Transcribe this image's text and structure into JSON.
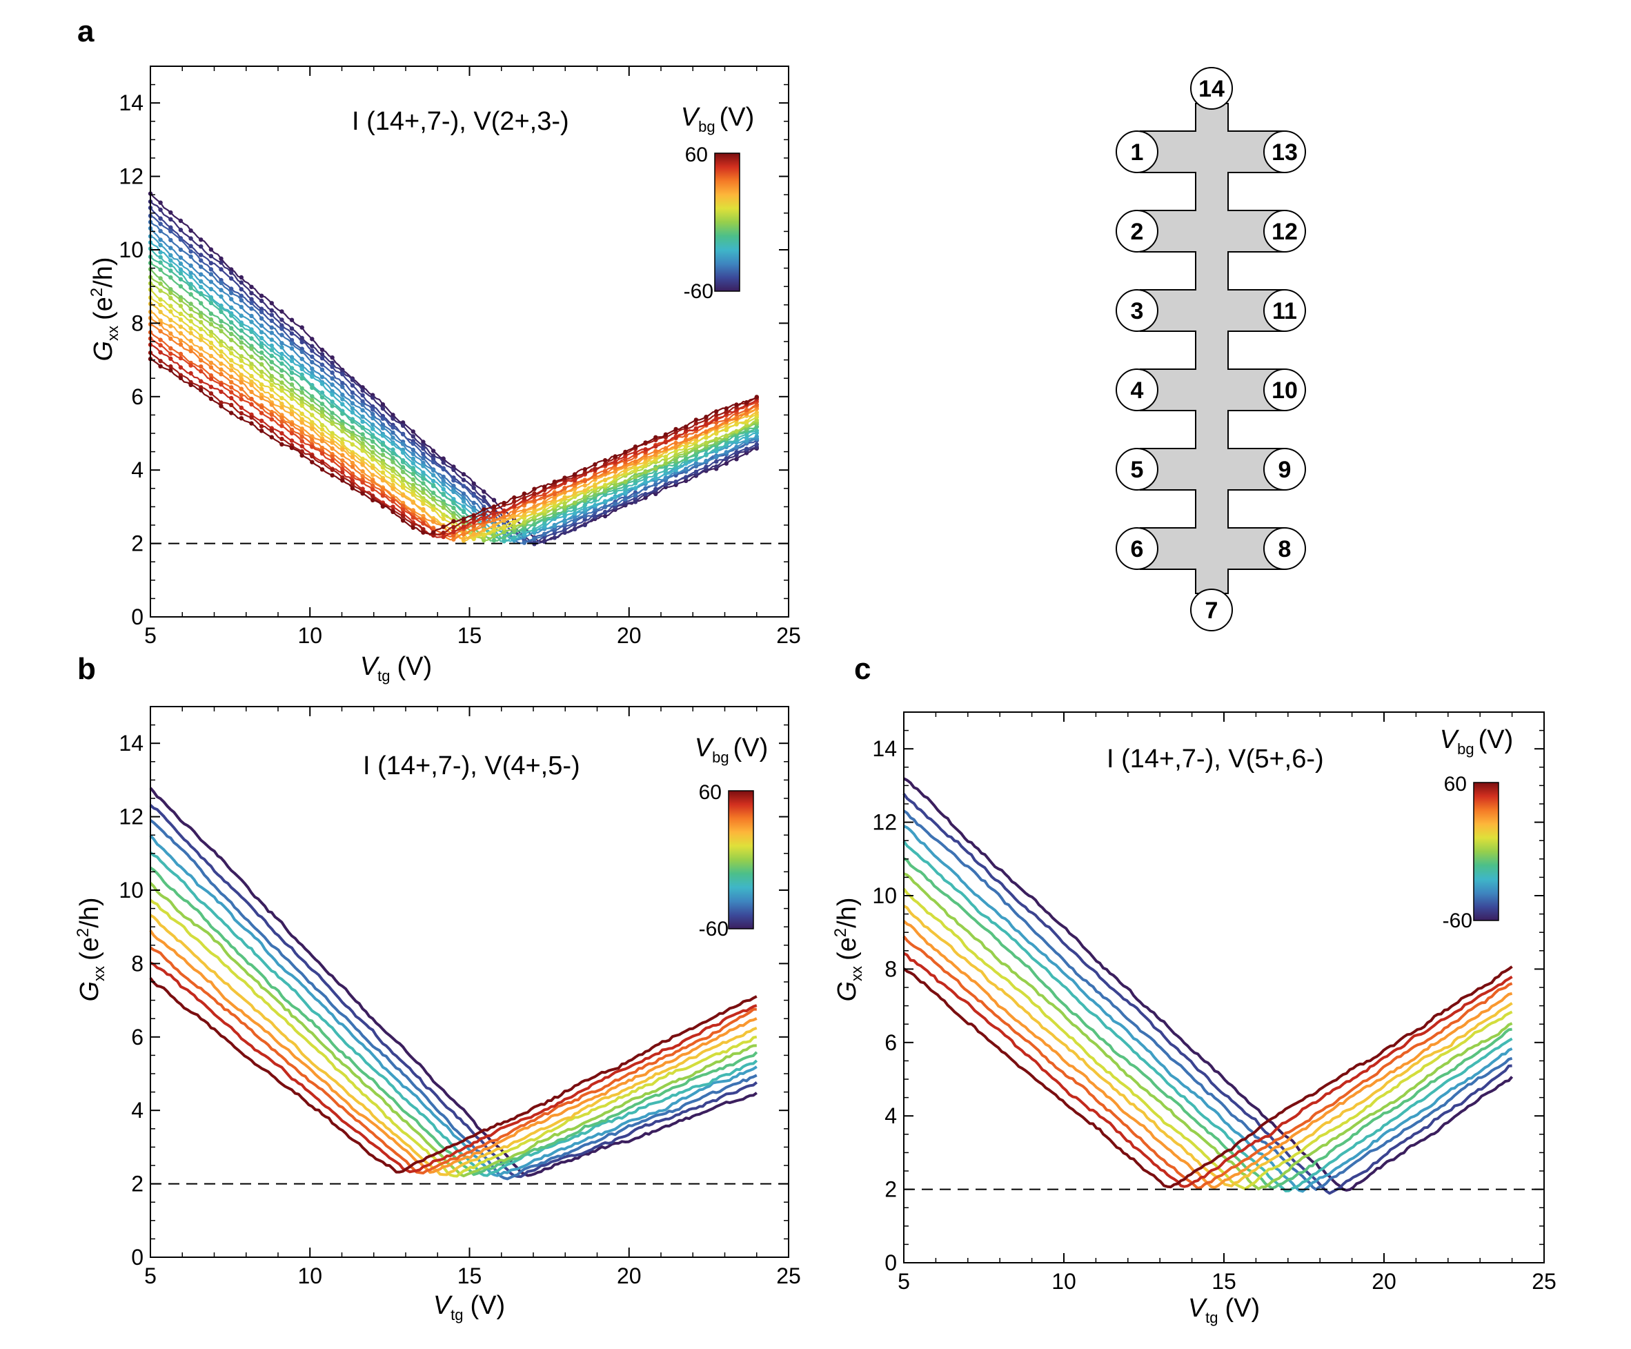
{
  "figure": {
    "colors": {
      "colormap": [
        "#3b1f5e",
        "#3b4a9a",
        "#3e86c0",
        "#3fb6c8",
        "#4cbf8a",
        "#97cf4c",
        "#dfe03a",
        "#fdb63a",
        "#f47a26",
        "#d2301f",
        "#7a0e10"
      ],
      "reference_line": "#000000",
      "device": "#d0d0d0"
    }
  },
  "chart_data": [
    {
      "id": "a",
      "panel_label": "a",
      "type": "line",
      "annotation": "I (14+,7-), V(2+,3-)",
      "xlabel": {
        "symbol": "V",
        "sub": "tg",
        "unit": "(V)"
      },
      "ylabel": {
        "symbol": "G",
        "sub": "xx",
        "unit_open": "(e",
        "sup": "2",
        "unit_close": "/h)"
      },
      "xlim": [
        5,
        25
      ],
      "ylim": [
        0,
        15
      ],
      "xticks": [
        "5",
        "10",
        "15",
        "20",
        "25"
      ],
      "yticks": [
        "0",
        "2",
        "4",
        "6",
        "8",
        "10",
        "12",
        "14"
      ],
      "reference_line_y": 2,
      "colorbar": {
        "title_symbol": "V",
        "title_sub": "bg",
        "title_unit": "(V)",
        "max_label": "60",
        "min_label": "-60",
        "range": [
          -60,
          60
        ]
      },
      "marker": true,
      "series_model": {
        "vbg_values": [
          -60,
          -55,
          -50,
          -45,
          -40,
          -35,
          -30,
          -25,
          -20,
          -15,
          -10,
          -5,
          0,
          5,
          10,
          15,
          20,
          25,
          30,
          35,
          40,
          45,
          50,
          55,
          60
        ],
        "x_start": 5,
        "x_end": 24,
        "description": "V-shaped curves; minimum position and left-edge value vary linearly with Vbg",
        "x_min_at_vbg_min": 17.2,
        "x_min_at_vbg_max": 13.7,
        "y_min_at_vbg_min": 1.98,
        "y_min_at_vbg_max": 2.2,
        "y_left_at_vbg_min": 11.5,
        "y_left_at_vbg_max": 7.0,
        "y_right_at_vbg_min": 4.6,
        "y_right_at_vbg_max": 6.0
      }
    },
    {
      "id": "b",
      "panel_label": "b",
      "type": "line",
      "annotation": "I (14+,7-), V(4+,5-)",
      "xlabel": {
        "symbol": "V",
        "sub": "tg",
        "unit": "(V)"
      },
      "ylabel": {
        "symbol": "G",
        "sub": "xx",
        "unit_open": "(e",
        "sup": "2",
        "unit_close": "/h)"
      },
      "xlim": [
        5,
        25
      ],
      "ylim": [
        0,
        15
      ],
      "xticks": [
        "5",
        "10",
        "15",
        "20",
        "25"
      ],
      "yticks": [
        "0",
        "2",
        "4",
        "6",
        "8",
        "10",
        "12",
        "14"
      ],
      "reference_line_y": 2,
      "colorbar": {
        "title_symbol": "V",
        "title_sub": "bg",
        "title_unit": "(V)",
        "max_label": "60",
        "min_label": "-60",
        "range": [
          -60,
          60
        ]
      },
      "marker": false,
      "series_model": {
        "vbg_values": [
          -60,
          -50,
          -40,
          -30,
          -20,
          -10,
          0,
          10,
          20,
          30,
          40,
          50,
          60
        ],
        "x_start": 5,
        "x_end": 24,
        "x_min_at_vbg_min": 16.8,
        "x_min_at_vbg_max": 12.8,
        "y_min_at_vbg_min": 2.15,
        "y_min_at_vbg_max": 2.25,
        "y_left_at_vbg_min": 12.8,
        "y_left_at_vbg_max": 7.6,
        "y_right_at_vbg_min": 4.5,
        "y_right_at_vbg_max": 7.1
      }
    },
    {
      "id": "c",
      "panel_label": "c",
      "type": "line",
      "annotation": "I (14+,7-), V(5+,6-)",
      "xlabel": {
        "symbol": "V",
        "sub": "tg",
        "unit": "(V)"
      },
      "ylabel": {
        "symbol": "G",
        "sub": "xx",
        "unit_open": "(e",
        "sup": "2",
        "unit_close": "/h)"
      },
      "xlim": [
        5,
        25
      ],
      "ylim": [
        0,
        15
      ],
      "xticks": [
        "5",
        "10",
        "15",
        "20",
        "25"
      ],
      "yticks": [
        "0",
        "2",
        "4",
        "6",
        "8",
        "10",
        "12",
        "14"
      ],
      "reference_line_y": 2,
      "colorbar": {
        "title_symbol": "V",
        "title_sub": "bg",
        "title_unit": "(V)",
        "max_label": "60",
        "min_label": "-60",
        "range": [
          -60,
          60
        ]
      },
      "marker": false,
      "series_model": {
        "vbg_values": [
          -60,
          -50,
          -40,
          -30,
          -20,
          -10,
          0,
          10,
          20,
          30,
          40,
          50,
          60
        ],
        "x_start": 5,
        "x_end": 24,
        "x_min_at_vbg_min": 18.8,
        "x_min_at_vbg_max": 13.3,
        "y_min_at_vbg_min": 1.9,
        "y_min_at_vbg_max": 2.05,
        "y_left_at_vbg_min": 13.2,
        "y_left_at_vbg_max": 8.0,
        "y_right_at_vbg_min": 5.1,
        "y_right_at_vbg_max": 8.1
      }
    }
  ],
  "device": {
    "pads_left": [
      "1",
      "2",
      "3",
      "4",
      "5",
      "6"
    ],
    "pads_right": [
      "13",
      "12",
      "11",
      "10",
      "9",
      "8"
    ],
    "pad_top": "14",
    "pad_bottom": "7"
  }
}
